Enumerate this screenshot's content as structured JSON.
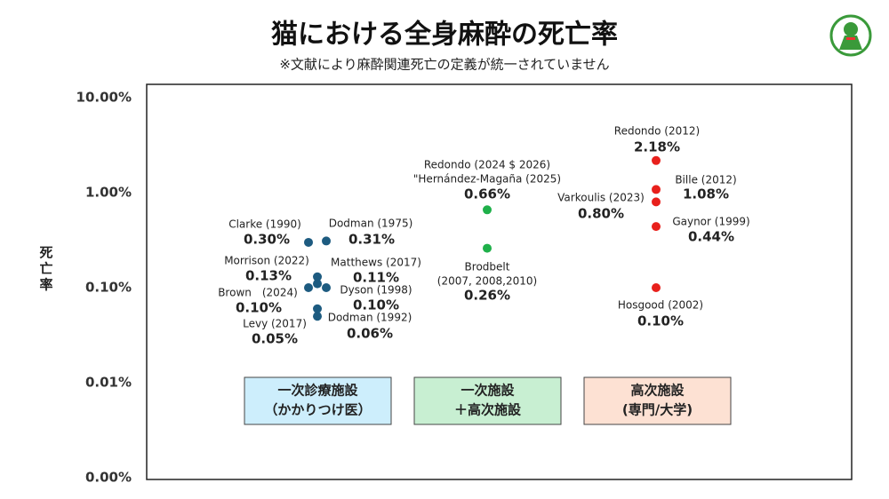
{
  "chart_data": {
    "type": "scatter",
    "title": "猫における全身麻酔の死亡率",
    "subtitle": "※文献により麻酔関連死亡の定義が統一されていません",
    "y_label": "死亡率",
    "log_scale": true,
    "grid": false,
    "ylim": [
      0.001,
      10
    ],
    "yticks": [
      {
        "value": 0.001,
        "label": "0.00%"
      },
      {
        "value": 0.01,
        "label": "0.01%"
      },
      {
        "value": 0.1,
        "label": "0.10%"
      },
      {
        "value": 1,
        "label": "1.00%"
      },
      {
        "value": 10,
        "label": "10.00%"
      }
    ],
    "series": [
      {
        "name": [
          "一次診療施設",
          "（かかりつけ医）"
        ],
        "color": "#1d5b80",
        "box_color": "#cdeefc",
        "names": [
          [
            "Clarke (1990)"
          ],
          [
            "Dodman (1975)"
          ],
          [
            "Morrison (2022)"
          ],
          [
            "Matthews (2017)"
          ],
          [
            "Brown　(2024)"
          ],
          [
            "Dyson (1998)"
          ],
          [
            "Levy (2017)"
          ],
          [
            "Dodman (1992)"
          ]
        ],
        "values": [
          0.3,
          0.31,
          0.13,
          0.11,
          0.1,
          0.1,
          0.05,
          0.06
        ],
        "value_labels": [
          "0.30%",
          "0.31%",
          "0.13%",
          "0.11%",
          "0.10%",
          "0.10%",
          "0.05%",
          "0.06%"
        ]
      },
      {
        "name": [
          "一次施設",
          "＋高次施設"
        ],
        "color": "#1fb04a",
        "box_color": "#c8efd2",
        "names": [
          [
            "Redondo (2024 $ 2026)",
            "\"Hernández-Magaña (2025)"
          ],
          [
            "Brodbelt",
            "(2007, 2008,2010)"
          ]
        ],
        "values": [
          0.66,
          0.26
        ],
        "value_labels": [
          "0.66%",
          "0.26%"
        ]
      },
      {
        "name": [
          "高次施設",
          "(専門/大学)"
        ],
        "color": "#e8201c",
        "box_color": "#fde1d3",
        "names": [
          [
            "Redondo (2012)"
          ],
          [
            "Bille (2012)"
          ],
          [
            "Varkoulis (2023)"
          ],
          [
            "Gaynor (1999)"
          ],
          [
            "Hosgood (2002)"
          ]
        ],
        "values": [
          2.18,
          1.08,
          0.8,
          0.44,
          0.1
        ],
        "value_labels": [
          "2.18%",
          "1.08%",
          "0.80%",
          "0.44%",
          "0.10%"
        ]
      }
    ]
  }
}
